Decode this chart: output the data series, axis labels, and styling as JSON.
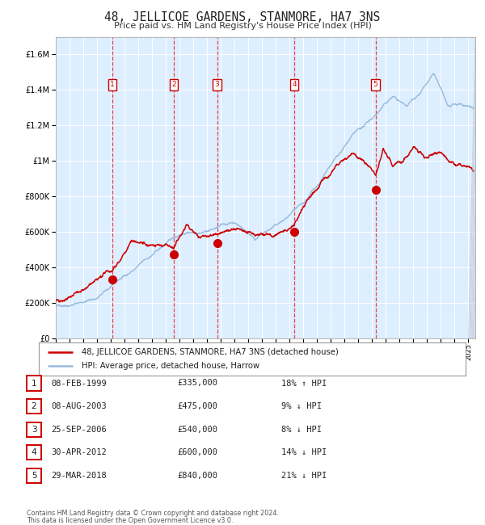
{
  "title": "48, JELLICOE GARDENS, STANMORE, HA7 3NS",
  "subtitle": "Price paid vs. HM Land Registry's House Price Index (HPI)",
  "footer1": "Contains HM Land Registry data © Crown copyright and database right 2024.",
  "footer2": "This data is licensed under the Open Government Licence v3.0.",
  "legend_red": "48, JELLICOE GARDENS, STANMORE, HA7 3NS (detached house)",
  "legend_blue": "HPI: Average price, detached house, Harrow",
  "transactions": [
    {
      "num": 1,
      "date": "08-FEB-1999",
      "price": 335000,
      "pct": "18%",
      "dir": "↑",
      "x_year": 1999.1
    },
    {
      "num": 2,
      "date": "08-AUG-2003",
      "price": 475000,
      "pct": "9%",
      "dir": "↓",
      "x_year": 2003.6
    },
    {
      "num": 3,
      "date": "25-SEP-2006",
      "price": 540000,
      "pct": "8%",
      "dir": "↓",
      "x_year": 2006.73
    },
    {
      "num": 4,
      "date": "30-APR-2012",
      "price": 600000,
      "pct": "14%",
      "dir": "↓",
      "x_year": 2012.33
    },
    {
      "num": 5,
      "date": "29-MAR-2018",
      "price": 840000,
      "pct": "21%",
      "dir": "↓",
      "x_year": 2018.25
    }
  ],
  "trans_prices": [
    335000,
    475000,
    540000,
    600000,
    840000
  ],
  "ylim": [
    0,
    1700000
  ],
  "xlim_start": 1995.0,
  "xlim_end": 2025.5,
  "yticks": [
    0,
    200000,
    400000,
    600000,
    800000,
    1000000,
    1200000,
    1400000,
    1600000
  ],
  "ytick_labels": [
    "£0",
    "£200K",
    "£400K",
    "£600K",
    "£800K",
    "£1M",
    "£1.2M",
    "£1.4M",
    "£1.6M"
  ],
  "background_color": "#ddeeff",
  "red_color": "#cc0000",
  "blue_color": "#99bbdd",
  "grid_color": "#ffffff",
  "dashed_color": "#ee3333",
  "num_box_color": "#cc0000"
}
